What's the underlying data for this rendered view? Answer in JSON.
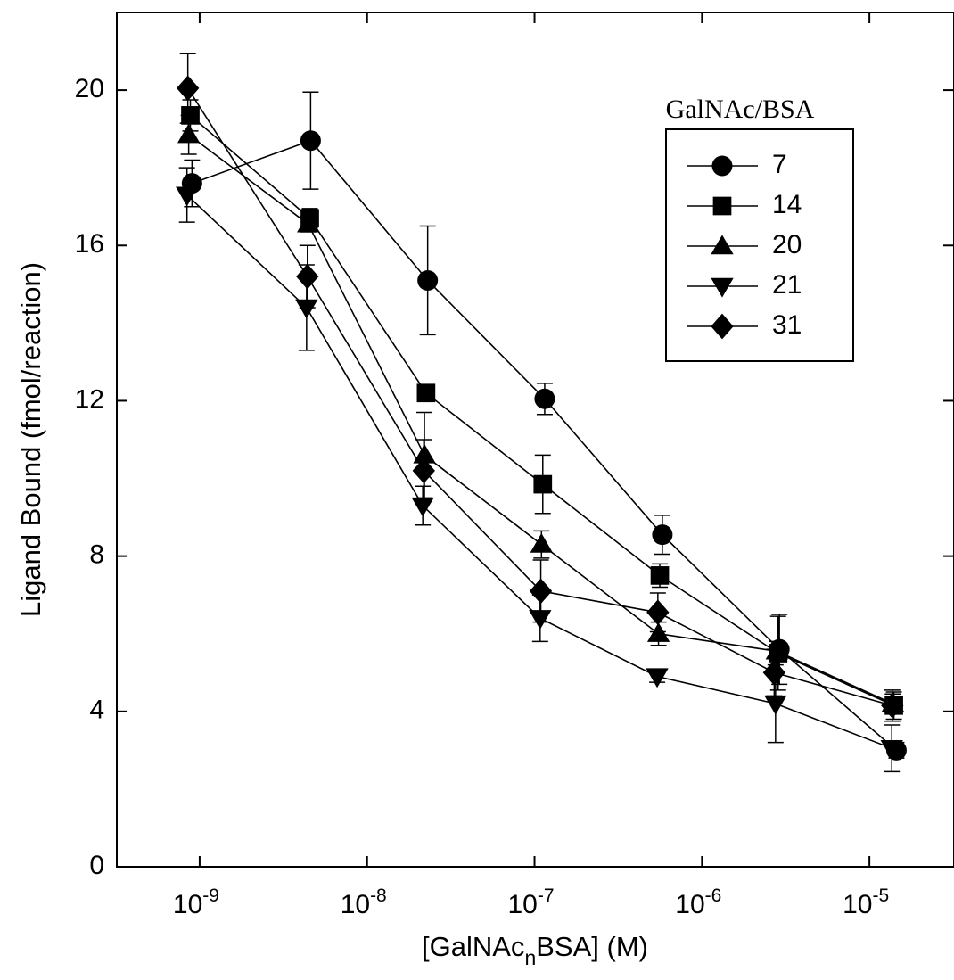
{
  "chart_data": {
    "type": "scatter",
    "xlabel_parts": [
      "[GalNAc",
      "n",
      "BSA] (M)"
    ],
    "ylabel": "Ligand Bound (fmol/reaction)",
    "x_scale": "log",
    "xlim": [
      3.2e-10,
      3.2e-05
    ],
    "ylim": [
      0,
      22
    ],
    "x_ticks": [
      {
        "value": 1e-09,
        "base": "10",
        "exp": "-9"
      },
      {
        "value": 1e-08,
        "base": "10",
        "exp": "-8"
      },
      {
        "value": 1e-07,
        "base": "10",
        "exp": "-7"
      },
      {
        "value": 1e-06,
        "base": "10",
        "exp": "-6"
      },
      {
        "value": 1e-05,
        "base": "10",
        "exp": "-5"
      }
    ],
    "y_ticks": [
      {
        "value": 0,
        "label": "0"
      },
      {
        "value": 4,
        "label": "4"
      },
      {
        "value": 8,
        "label": "8"
      },
      {
        "value": 12,
        "label": "12"
      },
      {
        "value": 16,
        "label": "16"
      },
      {
        "value": 20,
        "label": "20"
      }
    ],
    "legend": {
      "title": "GalNAc/BSA",
      "position": "top-right"
    },
    "series": [
      {
        "name": "7",
        "marker": "circle",
        "x": [
          9e-10,
          4.6e-09,
          2.3e-08,
          1.15e-07,
          5.8e-07,
          2.9e-06,
          1.45e-05
        ],
        "y": [
          17.6,
          18.7,
          15.1,
          12.05,
          8.55,
          5.6,
          3.0
        ],
        "err": [
          0.6,
          1.25,
          1.4,
          0.4,
          0.5,
          0.9,
          0.2
        ]
      },
      {
        "name": "14",
        "marker": "square",
        "x": [
          8.8e-10,
          4.55e-09,
          2.25e-08,
          1.12e-07,
          5.6e-07,
          2.85e-06,
          1.4e-05
        ],
        "y": [
          19.35,
          16.7,
          12.2,
          9.85,
          7.5,
          5.5,
          4.15
        ],
        "err": [
          0.4,
          0.25,
          0.2,
          0.75,
          0.3,
          0.95,
          0.35
        ]
      },
      {
        "name": "20",
        "marker": "triangle-up",
        "x": [
          8.6e-10,
          4.45e-09,
          2.2e-08,
          1.1e-07,
          5.5e-07,
          2.8e-06,
          1.38e-05
        ],
        "y": [
          18.85,
          16.55,
          10.6,
          8.3,
          6.0,
          5.55,
          4.2
        ],
        "err": [
          0.5,
          0.2,
          1.1,
          0.35,
          0.3,
          0.25,
          0.25
        ]
      },
      {
        "name": "21",
        "marker": "triangle-down",
        "x": [
          8.4e-10,
          4.35e-09,
          2.15e-08,
          1.08e-07,
          5.4e-07,
          2.75e-06,
          1.36e-05
        ],
        "y": [
          17.3,
          14.4,
          9.3,
          6.4,
          4.9,
          4.2,
          3.05
        ],
        "err": [
          0.7,
          1.1,
          0.5,
          0.6,
          0.15,
          1.0,
          0.6
        ]
      },
      {
        "name": "31",
        "marker": "diamond",
        "x": [
          8.5e-10,
          4.4e-09,
          2.18e-08,
          1.09e-07,
          5.45e-07,
          2.7e-06,
          1.37e-05
        ],
        "y": [
          20.05,
          15.2,
          10.2,
          7.1,
          6.55,
          5.0,
          4.15
        ],
        "err": [
          0.9,
          0.8,
          0.8,
          0.8,
          0.5,
          0.6,
          0.4
        ]
      }
    ]
  }
}
